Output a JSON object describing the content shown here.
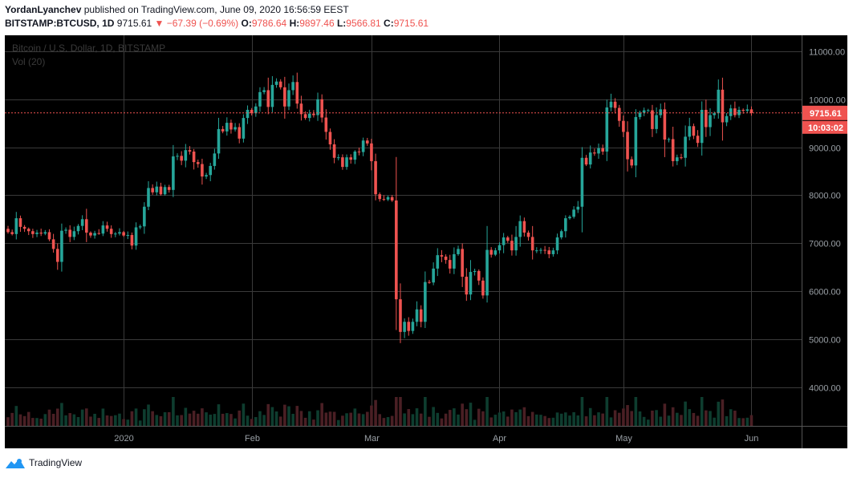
{
  "publish": {
    "author": "YordanLyanchev",
    "text": "published on TradingView.com, June 09, 2020 16:56:59 EEST"
  },
  "ohlc": {
    "symbol": "BITSTAMP:BTCUSD, 1D",
    "last": "9715.61",
    "change": "▼ −67.39 (−0.69%)",
    "o_label": "O:",
    "o": "9786.64",
    "h_label": "H:",
    "h": "9897.46",
    "l_label": "L:",
    "l": "9566.81",
    "c_label": "C:",
    "c": "9715.61"
  },
  "watermark": {
    "line1": "Bitcoin / U.S. Dollar, 1D, BITSTAMP",
    "line2": "Vol (20)"
  },
  "footer": {
    "brand": "TradingView"
  },
  "colors": {
    "up": "#26a69a",
    "down": "#ef5350",
    "background": "#000000",
    "grid": "#3a3a3a"
  },
  "chart_data": {
    "type": "candlestick",
    "title": "Bitcoin / U.S. Dollar, 1D, BITSTAMP",
    "indicator": "Vol (20)",
    "y_ticks": [
      "11000.00",
      "10000.00",
      "9000.00",
      "8000.00",
      "7000.00",
      "6000.00",
      "5000.00",
      "4000.00"
    ],
    "x_ticks": [
      "2020",
      "Feb",
      "Mar",
      "Apr",
      "May",
      "Jun"
    ],
    "x_tick_dates": [
      "2020-01-01",
      "2020-02-01",
      "2020-03-01",
      "2020-04-01",
      "2020-05-01",
      "2020-06-01"
    ],
    "ylim": [
      3200,
      11300
    ],
    "grid": true,
    "last_price": "9715.61",
    "countdown": "10:03:02",
    "start_date": "2019-12-04",
    "end_date": "2020-06-09",
    "closes": [
      7230,
      7190,
      7520,
      7340,
      7300,
      7250,
      7190,
      7220,
      7200,
      7230,
      7080,
      6880,
      6610,
      7260,
      7280,
      7130,
      7250,
      7360,
      7500,
      7220,
      7160,
      7210,
      7200,
      7370,
      7300,
      7190,
      7200,
      7230,
      7160,
      7170,
      6950,
      7330,
      7350,
      7760,
      8150,
      8060,
      8180,
      8020,
      8170,
      8110,
      8810,
      8820,
      8720,
      8940,
      8910,
      8690,
      8650,
      8390,
      8420,
      8610,
      8870,
      9380,
      9330,
      9510,
      9370,
      9420,
      9180,
      9610,
      9780,
      9710,
      9850,
      10150,
      10190,
      9840,
      10300,
      10370,
      10250,
      9850,
      10190,
      10360,
      9910,
      9690,
      9610,
      9700,
      9670,
      10000,
      9620,
      9320,
      9060,
      8780,
      8790,
      8590,
      8790,
      8740,
      8910,
      8900,
      9140,
      9080,
      8710,
      8020,
      7920,
      7910,
      7960,
      7890,
      5830,
      5150,
      5360,
      5170,
      5360,
      5620,
      5360,
      6190,
      6180,
      6470,
      6750,
      6720,
      6650,
      6470,
      6770,
      6880,
      6300,
      5930,
      6400,
      6420,
      6220,
      5910,
      6860,
      6760,
      6850,
      6960,
      7120,
      7050,
      6850,
      7130,
      7460,
      7220,
      7130,
      6850,
      6850,
      6860,
      6850,
      6770,
      6850,
      7120,
      7250,
      7520,
      7550,
      7700,
      7760,
      8780,
      8640,
      8890,
      8870,
      8980,
      8910,
      9830,
      9950,
      9820,
      9550,
      9320,
      8750,
      8620,
      9630,
      9720,
      9770,
      9770,
      9380,
      9670,
      9790,
      9160,
      9170,
      8710,
      8790,
      8780,
      9220,
      9440,
      9240,
      9090,
      9780,
      9420,
      9670,
      9710,
      10200,
      9520,
      9650,
      9810,
      9670,
      9780,
      9760,
      9790,
      9715
    ]
  }
}
